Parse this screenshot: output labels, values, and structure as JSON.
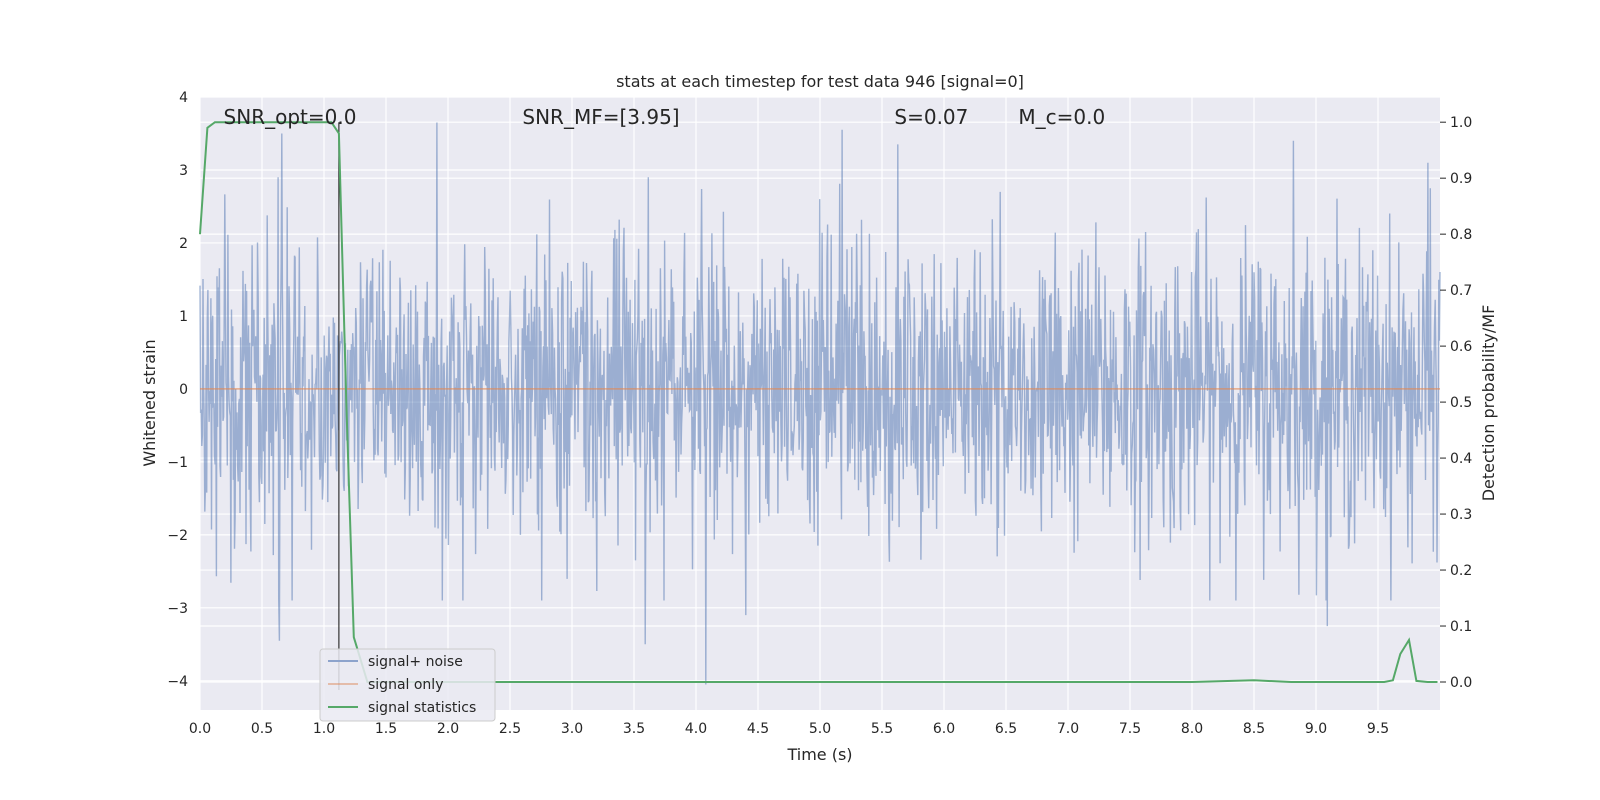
{
  "chart_data": {
    "type": "line",
    "title": "stats at each timestep for test data 946 [signal=0]",
    "xlabel": "Time (s)",
    "ylabel": "Whitened strain",
    "ylabel_right": "Detection probability/MF",
    "xlim": [
      0,
      10
    ],
    "ylim": [
      -4.4,
      4
    ],
    "ylim_right": [
      -0.05,
      1.045
    ],
    "x_ticks": [
      0.0,
      0.5,
      1.0,
      1.5,
      2.0,
      2.5,
      3.0,
      3.5,
      4.0,
      4.5,
      5.0,
      5.5,
      6.0,
      6.5,
      7.0,
      7.5,
      8.0,
      8.5,
      9.0,
      9.5
    ],
    "x_tick_labels": [
      "0.0",
      "0.5",
      "1.0",
      "1.5",
      "2.0",
      "2.5",
      "3.0",
      "3.5",
      "4.0",
      "4.5",
      "5.0",
      "5.5",
      "6.0",
      "6.5",
      "7.0",
      "7.5",
      "8.0",
      "8.5",
      "9.0",
      "9.5"
    ],
    "y_ticks": [
      -4,
      -3,
      -2,
      -1,
      0,
      1,
      2,
      3,
      4
    ],
    "y_tick_labels": [
      "−4",
      "−3",
      "−2",
      "−1",
      "0",
      "1",
      "2",
      "3",
      "4"
    ],
    "y_right_ticks": [
      0.0,
      0.1,
      0.2,
      0.3,
      0.4,
      0.5,
      0.6,
      0.7,
      0.8,
      0.9,
      1.0
    ],
    "y_right_tick_labels": [
      "0.0",
      "0.1",
      "0.2",
      "0.3",
      "0.4",
      "0.5",
      "0.6",
      "0.7",
      "0.8",
      "0.9",
      "1.0"
    ],
    "grid": true,
    "legend_position": "lower-left",
    "annotations": [
      {
        "text": "SNR_opt=0.0",
        "x": 0.19
      },
      {
        "text": "SNR_MF=[3.95]",
        "x": 2.6
      },
      {
        "text": "S=0.07",
        "x": 5.6
      },
      {
        "text": "M_c=0.0",
        "x": 6.6
      }
    ],
    "vertical_marker_x": 1.12,
    "series": [
      {
        "name": "signal+ noise",
        "axis": "left",
        "color": "#4c72b0",
        "noise_sigma": 1.0,
        "n_samples": 2048,
        "peaks": [
          {
            "x": 0.32,
            "y": -1.7
          },
          {
            "x": 0.64,
            "y": -3.45
          },
          {
            "x": 0.66,
            "y": 3.5
          },
          {
            "x": 1.91,
            "y": 3.65
          },
          {
            "x": 3.59,
            "y": -3.5
          },
          {
            "x": 4.08,
            "y": -4.05
          },
          {
            "x": 4.4,
            "y": -3.1
          },
          {
            "x": 5.18,
            "y": 3.55
          },
          {
            "x": 5.63,
            "y": 3.35
          },
          {
            "x": 8.82,
            "y": 3.4
          },
          {
            "x": 9.09,
            "y": -3.25
          },
          {
            "x": 9.9,
            "y": 3.1
          }
        ]
      },
      {
        "name": "signal only",
        "axis": "left",
        "color": "#dd8452",
        "x": [
          0,
          10
        ],
        "y": [
          0,
          0
        ]
      },
      {
        "name": "signal statistics",
        "axis": "right",
        "color": "#55a868",
        "x": [
          0.0,
          0.06,
          0.12,
          0.5,
          1.0,
          1.06,
          1.12,
          1.18,
          1.24,
          1.35,
          2.0,
          8.0,
          8.5,
          8.8,
          9.55,
          9.62,
          9.68,
          9.75,
          9.81,
          9.9,
          9.98
        ],
        "y": [
          0.8,
          0.99,
          1.0,
          1.0,
          1.0,
          1.0,
          0.98,
          0.5,
          0.08,
          0.0,
          0.0,
          0.0,
          0.003,
          0.0,
          0.0,
          0.003,
          0.05,
          0.075,
          0.002,
          0.0,
          0.0
        ]
      }
    ]
  }
}
